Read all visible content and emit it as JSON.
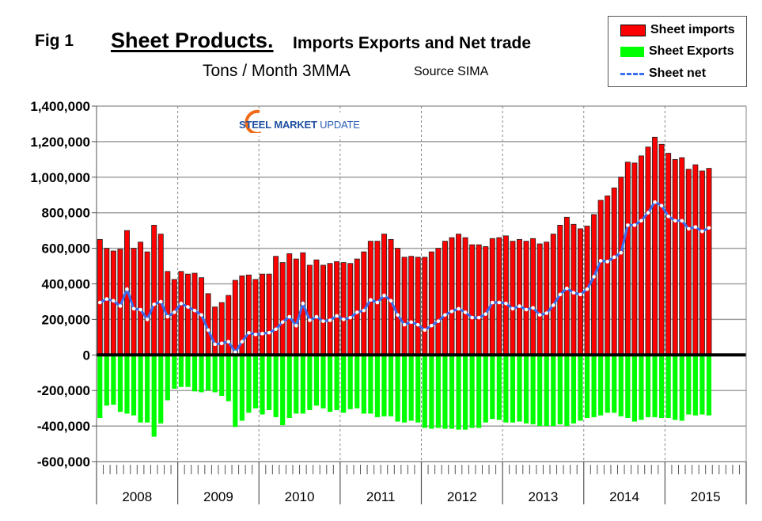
{
  "header": {
    "fig_label": "Fig 1",
    "title_main": "Sheet Products.",
    "title_rest": "Imports Exports and Net trade",
    "subtitle": "Tons / Month 3MMA",
    "source": "Source SIMA"
  },
  "logo": {
    "word1": "STEEL",
    "word2": "MARKET",
    "word3": "UPDATE"
  },
  "legend": [
    {
      "label": "Sheet imports",
      "color": "#ff0000",
      "kind": "bar"
    },
    {
      "label": "Sheet Exports",
      "color": "#00ff00",
      "kind": "bar"
    },
    {
      "label": "Sheet net",
      "color": "#3a6ff0",
      "kind": "dashed-line"
    }
  ],
  "chart_data": {
    "type": "bar",
    "title": "Sheet Products. Imports Exports and Net trade",
    "subtitle": "Tons / Month 3MMA",
    "source": "Source SIMA",
    "xlabel": "",
    "ylabel": "",
    "ylim": [
      -600000,
      1400000
    ],
    "yticks": [
      1400000,
      1200000,
      1000000,
      800000,
      600000,
      400000,
      200000,
      0,
      -200000,
      -400000,
      -600000
    ],
    "ytick_labels": [
      "1,400,000",
      "1,200,000",
      "1,000,000",
      "800,000",
      "600,000",
      "400,000",
      "200,000",
      "0",
      "-200,000",
      "-400,000",
      "-600,000"
    ],
    "x_year_labels": [
      "2008",
      "2009",
      "2010",
      "2011",
      "2012",
      "2013",
      "2014",
      "2015"
    ],
    "x_start": "2008-01",
    "months_per_year": 12,
    "total_year_slots": 8,
    "grid": true,
    "legend_position": "top-right",
    "colors": {
      "imports": "#ff0000",
      "exports": "#00ff00",
      "net": "#3a6ff0"
    },
    "series": [
      {
        "name": "Sheet imports",
        "type": "bar",
        "values": [
          650000,
          600000,
          585000,
          595000,
          700000,
          600000,
          635000,
          580000,
          730000,
          680000,
          470000,
          425000,
          470000,
          455000,
          460000,
          435000,
          345000,
          270000,
          295000,
          335000,
          420000,
          445000,
          450000,
          425000,
          455000,
          455000,
          555000,
          520000,
          570000,
          540000,
          575000,
          505000,
          535000,
          505000,
          515000,
          525000,
          520000,
          515000,
          540000,
          580000,
          640000,
          640000,
          680000,
          650000,
          600000,
          550000,
          555000,
          550000,
          550000,
          580000,
          600000,
          640000,
          660000,
          680000,
          660000,
          620000,
          620000,
          610000,
          655000,
          660000,
          670000,
          640000,
          650000,
          640000,
          655000,
          625000,
          635000,
          680000,
          730000,
          775000,
          735000,
          710000,
          725000,
          790000,
          870000,
          895000,
          940000,
          1000000,
          1085000,
          1080000,
          1120000,
          1170000,
          1225000,
          1185000,
          1135000,
          1100000,
          1110000,
          1045000,
          1070000,
          1035000,
          1050000
        ]
      },
      {
        "name": "Sheet Exports",
        "type": "bar",
        "values": [
          -355000,
          -285000,
          -280000,
          -320000,
          -330000,
          -340000,
          -380000,
          -380000,
          -460000,
          -385000,
          -255000,
          -190000,
          -180000,
          -180000,
          -205000,
          -210000,
          -200000,
          -210000,
          -230000,
          -260000,
          -405000,
          -370000,
          -325000,
          -300000,
          -335000,
          -310000,
          -350000,
          -395000,
          -355000,
          -330000,
          -330000,
          -310000,
          -285000,
          -300000,
          -320000,
          -310000,
          -325000,
          -305000,
          -300000,
          -330000,
          -330000,
          -350000,
          -345000,
          -345000,
          -375000,
          -380000,
          -370000,
          -380000,
          -410000,
          -415000,
          -410000,
          -415000,
          -415000,
          -420000,
          -420000,
          -410000,
          -410000,
          -380000,
          -360000,
          -365000,
          -380000,
          -380000,
          -375000,
          -385000,
          -390000,
          -400000,
          -400000,
          -400000,
          -390000,
          -400000,
          -385000,
          -370000,
          -355000,
          -350000,
          -340000,
          -325000,
          -325000,
          -345000,
          -355000,
          -375000,
          -365000,
          -350000,
          -350000,
          -355000,
          -355000,
          -365000,
          -370000,
          -335000,
          -340000,
          -335000,
          -340000
        ]
      },
      {
        "name": "Sheet net",
        "type": "line",
        "values": [
          295000,
          315000,
          305000,
          275000,
          370000,
          260000,
          255000,
          200000,
          285000,
          300000,
          215000,
          240000,
          290000,
          270000,
          250000,
          225000,
          140000,
          60000,
          65000,
          75000,
          15000,
          75000,
          125000,
          115000,
          120000,
          125000,
          145000,
          185000,
          215000,
          165000,
          290000,
          195000,
          215000,
          190000,
          195000,
          220000,
          200000,
          210000,
          240000,
          250000,
          310000,
          295000,
          335000,
          305000,
          225000,
          170000,
          185000,
          170000,
          140000,
          165000,
          190000,
          225000,
          245000,
          260000,
          240000,
          210000,
          210000,
          230000,
          295000,
          295000,
          290000,
          260000,
          275000,
          255000,
          265000,
          225000,
          235000,
          280000,
          340000,
          375000,
          350000,
          340000,
          370000,
          440000,
          530000,
          525000,
          550000,
          575000,
          730000,
          730000,
          755000,
          800000,
          860000,
          840000,
          780000,
          755000,
          755000,
          710000,
          720000,
          695000,
          715000
        ]
      }
    ]
  }
}
